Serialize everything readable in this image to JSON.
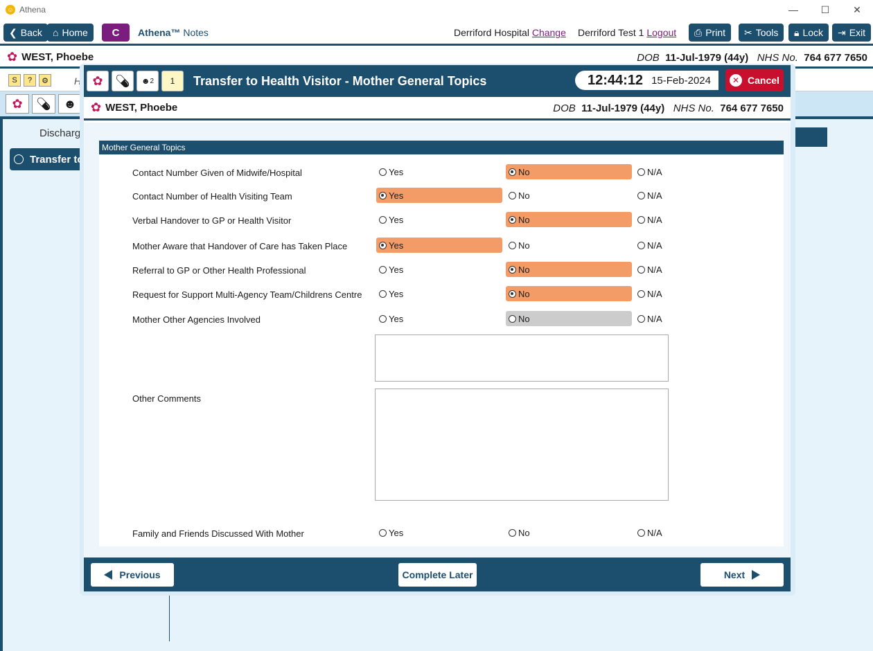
{
  "app": {
    "title": "Athena"
  },
  "toolbar": {
    "back": "Back",
    "home": "Home",
    "c_label": "C",
    "notes_brand": "Athena™",
    "notes_label": " Notes",
    "hospital": "Derriford Hospital",
    "change": "Change",
    "user": "Derriford Test 1",
    "logout": "Logout",
    "print": "Print",
    "tools": "Tools",
    "lock": "Lock",
    "exit": "Exit"
  },
  "patient": {
    "name": "WEST, Phoebe",
    "dob_label": "DOB",
    "dob": "11-Jul-1979 (44y)",
    "nhs_label": "NHS No.",
    "nhs": "764 677 7650"
  },
  "background": {
    "discharge_label": "Discharg",
    "transfer_label": "Transfer to",
    "h_label": "H"
  },
  "modal": {
    "title": "Transfer to Health Visitor - Mother General Topics",
    "time": "12:44:12",
    "date": "15-Feb-2024",
    "cancel": "Cancel",
    "icon_badge_2": "2",
    "icon_badge_1": "1",
    "section_title": "Mother General Topics",
    "option_labels": {
      "yes": "Yes",
      "no": "No",
      "na": "N/A"
    },
    "questions": [
      {
        "label": "Contact Number Given of Midwife/Hospital",
        "selected": "no"
      },
      {
        "label": "Contact Number of Health Visiting Team",
        "selected": "yes"
      },
      {
        "label": "Verbal Handover to GP or Health Visitor",
        "selected": "no"
      },
      {
        "label": "Mother Aware that Handover of Care has Taken Place",
        "selected": "yes"
      },
      {
        "label": "Referral to GP or Other Health Professional",
        "selected": "no"
      },
      {
        "label": "Request for Support Multi-Agency Team/Childrens Centre",
        "selected": "no"
      },
      {
        "label": "Mother Other Agencies Involved",
        "selected": "none"
      }
    ],
    "other_comments_label": "Other Comments",
    "family_friends_label": "Family and Friends Discussed With Mother",
    "previous": "Previous",
    "complete_later": "Complete Later",
    "next": "Next"
  },
  "colors": {
    "primary": "#1c4e6e",
    "selected": "#f39c68",
    "cancel": "#c8102e",
    "c_button": "#7b1c7f"
  }
}
